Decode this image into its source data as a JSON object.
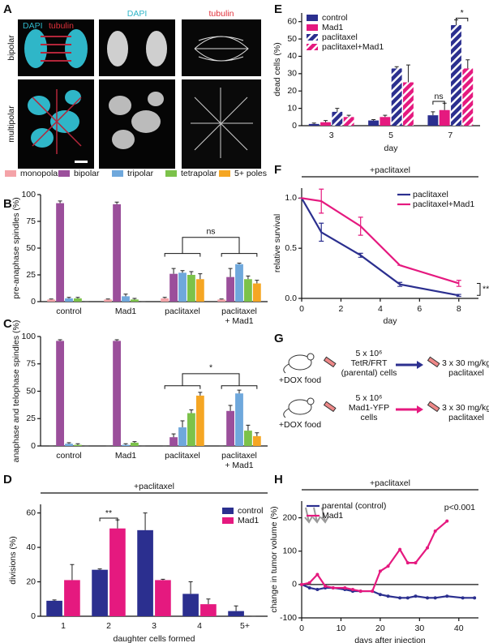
{
  "panel_a": {
    "panel": "A",
    "overlay_titles": [
      "DAPI",
      "tubulin"
    ],
    "column_titles": [
      "DAPI",
      "tubulin"
    ],
    "row_labels": [
      "bipolar",
      "multipolar"
    ]
  },
  "panel_g": {
    "panel": "G",
    "rows": [
      {
        "food": "+DOX food",
        "cells": [
          "5 x 10⁶",
          "TetR/FRT",
          "(parental) cells"
        ],
        "treatment": [
          "3 x 30 mg/kg",
          "paclitaxel"
        ]
      },
      {
        "food": "+DOX food",
        "cells": [
          "5 x 10⁶",
          "Mad1-YFP",
          "cells"
        ],
        "treatment": [
          "3 x 30 mg/kg",
          "paclitaxel"
        ]
      }
    ]
  },
  "chart_data": [
    {
      "type": "bar",
      "panel": "B",
      "ylabel": "pre-anaphase spindles (%)",
      "legend": "top",
      "categories": [
        "control",
        "Mad1",
        "paclitaxel",
        "paclitaxel\n+ Mad1"
      ],
      "series": [
        {
          "name": "monopolar",
          "color": "#f4a3a8",
          "values": [
            2,
            2,
            3,
            2
          ],
          "errors": [
            0.5,
            0.5,
            1,
            0.5
          ]
        },
        {
          "name": "bipolar",
          "color": "#9b4f9b",
          "values": [
            92,
            91,
            26,
            23
          ],
          "errors": [
            2,
            2,
            5,
            8
          ]
        },
        {
          "name": "tripolar",
          "color": "#6fa8dc",
          "values": [
            3,
            5,
            27,
            35
          ],
          "errors": [
            1,
            2,
            2,
            1
          ]
        },
        {
          "name": "tetrapolar",
          "color": "#7cc24a",
          "values": [
            3,
            2,
            25,
            21
          ],
          "errors": [
            1,
            1,
            3,
            3
          ]
        },
        {
          "name": "5+ poles",
          "color": "#f5a623",
          "values": [
            0,
            0,
            21,
            17
          ],
          "errors": [
            0,
            0,
            5,
            3
          ]
        }
      ],
      "ylim": [
        0,
        100
      ],
      "yticks": [
        0,
        25,
        50,
        75,
        100
      ],
      "annotations": [
        "ns"
      ]
    },
    {
      "type": "bar",
      "panel": "C",
      "ylabel": "anaphase and telophase spindles (%)",
      "categories": [
        "control",
        "Mad1",
        "paclitaxel",
        "paclitaxel\n+ Mad1"
      ],
      "series": [
        {
          "color": "#f4a3a8",
          "values": [
            0,
            0,
            0,
            0
          ],
          "errors": [
            0,
            0,
            0,
            0
          ]
        },
        {
          "color": "#9b4f9b",
          "values": [
            96,
            96,
            8,
            32
          ],
          "errors": [
            1,
            1,
            3,
            5
          ]
        },
        {
          "color": "#6fa8dc",
          "values": [
            2,
            1,
            17,
            48
          ],
          "errors": [
            1,
            1,
            6,
            3
          ]
        },
        {
          "color": "#7cc24a",
          "values": [
            1,
            3,
            30,
            14
          ],
          "errors": [
            1,
            1,
            3,
            5
          ]
        },
        {
          "color": "#f5a623",
          "values": [
            0,
            0,
            46,
            9
          ],
          "errors": [
            0,
            0,
            3,
            3
          ]
        }
      ],
      "ylim": [
        0,
        100
      ],
      "yticks": [
        0,
        25,
        50,
        75,
        100
      ],
      "annotations": [
        "*"
      ]
    },
    {
      "type": "bar",
      "panel": "D",
      "header": "+paclitaxel",
      "xlabel": "daughter cells formed",
      "ylabel": "divisions (%)",
      "legend": "top-right",
      "categories": [
        "1",
        "2",
        "3",
        "4",
        "5+"
      ],
      "series": [
        {
          "name": "control",
          "color": "#2b2f8f",
          "values": [
            9,
            27,
            50,
            13,
            3
          ],
          "errors": [
            0.5,
            0.5,
            10,
            7,
            3
          ]
        },
        {
          "name": "Mad1",
          "color": "#e5197f",
          "values": [
            21,
            51,
            21,
            7,
            0
          ],
          "errors": [
            9,
            5,
            0.5,
            3,
            0
          ]
        }
      ],
      "ylim": [
        0,
        65
      ],
      "yticks": [
        0,
        20,
        40,
        60
      ],
      "annotations": [
        "**"
      ]
    },
    {
      "type": "bar",
      "panel": "E",
      "xlabel": "day",
      "ylabel": "dead cells (%)",
      "legend": "top-left",
      "categories": [
        "3",
        "5",
        "7"
      ],
      "series": [
        {
          "name": "control",
          "color": "#2b2f8f",
          "values": [
            1,
            3,
            6
          ],
          "errors": [
            0.5,
            0.5,
            2
          ]
        },
        {
          "name": "Mad1",
          "color": "#e5197f",
          "values": [
            2,
            5,
            9
          ],
          "errors": [
            1,
            1,
            4
          ]
        },
        {
          "name": "paclitaxel",
          "color": "#2b2f8f",
          "hatch": true,
          "values": [
            8,
            33,
            58
          ],
          "errors": [
            2,
            1,
            3
          ]
        },
        {
          "name": "paclitaxel+Mad1",
          "color": "#e5197f",
          "hatch": true,
          "values": [
            5,
            25,
            33
          ],
          "errors": [
            1,
            10,
            5
          ]
        }
      ],
      "ylim": [
        0,
        65
      ],
      "yticks": [
        0,
        10,
        20,
        30,
        40,
        50,
        60
      ],
      "annotations": [
        "ns",
        "*"
      ]
    },
    {
      "type": "line",
      "panel": "F",
      "header": "+paclitaxel",
      "xlabel": "day",
      "ylabel": "relative survival",
      "legend": "top-right",
      "x": [
        0,
        1,
        3,
        5,
        8
      ],
      "series": [
        {
          "name": "paclitaxel",
          "color": "#2b2f8f",
          "values": [
            1,
            0.66,
            0.43,
            0.14,
            0.03
          ],
          "errors": [
            0,
            0.09,
            0.02,
            0.02,
            0.01
          ]
        },
        {
          "name": "paclitaxel+Mad1",
          "color": "#e5197f",
          "values": [
            1,
            0.97,
            0.72,
            0.33,
            0.15
          ],
          "errors": [
            0,
            0.12,
            0.09,
            0,
            0.03
          ]
        }
      ],
      "xlim": [
        0,
        9
      ],
      "xticks": [
        0,
        2,
        4,
        6,
        8
      ],
      "ylim": [
        0,
        1.1
      ],
      "yticks": [
        {
          "value": 0,
          "label": "0.0"
        },
        {
          "value": 0.5,
          "label": "0.5"
        },
        {
          "value": 1,
          "label": "1.0"
        }
      ],
      "annotations": [
        "**"
      ]
    },
    {
      "type": "line",
      "panel": "H",
      "header": "+paclitaxel",
      "xlabel": "days after injection",
      "ylabel": "change in tumor volume (%)",
      "legend": "top-left",
      "series": [
        {
          "name": "parental (control)",
          "color": "#2b2f8f",
          "x": [
            0,
            2,
            4,
            6,
            8,
            11,
            13,
            15,
            18,
            20,
            22,
            25,
            27,
            29,
            32,
            34,
            37,
            41,
            44
          ],
          "values": [
            0,
            -10,
            -15,
            -10,
            -10,
            -15,
            -20,
            -20,
            -20,
            -30,
            -35,
            -40,
            -40,
            -35,
            -40,
            -40,
            -35,
            -40,
            -40
          ]
        },
        {
          "name": "Mad1",
          "color": "#e5197f",
          "x": [
            0,
            2,
            4,
            6,
            8,
            11,
            13,
            15,
            18,
            20,
            22,
            25,
            27,
            29,
            32,
            34,
            37
          ],
          "values": [
            0,
            5,
            30,
            -5,
            -10,
            -10,
            -15,
            -20,
            -20,
            40,
            55,
            105,
            65,
            65,
            110,
            160,
            190
          ]
        }
      ],
      "xlim": [
        0,
        45
      ],
      "xticks": [
        0,
        10,
        20,
        30,
        40
      ],
      "ylim": [
        -100,
        250
      ],
      "yticks": [
        -100,
        0,
        100,
        200
      ],
      "zero_line": true,
      "annotations": [
        "p<0.001"
      ]
    }
  ]
}
